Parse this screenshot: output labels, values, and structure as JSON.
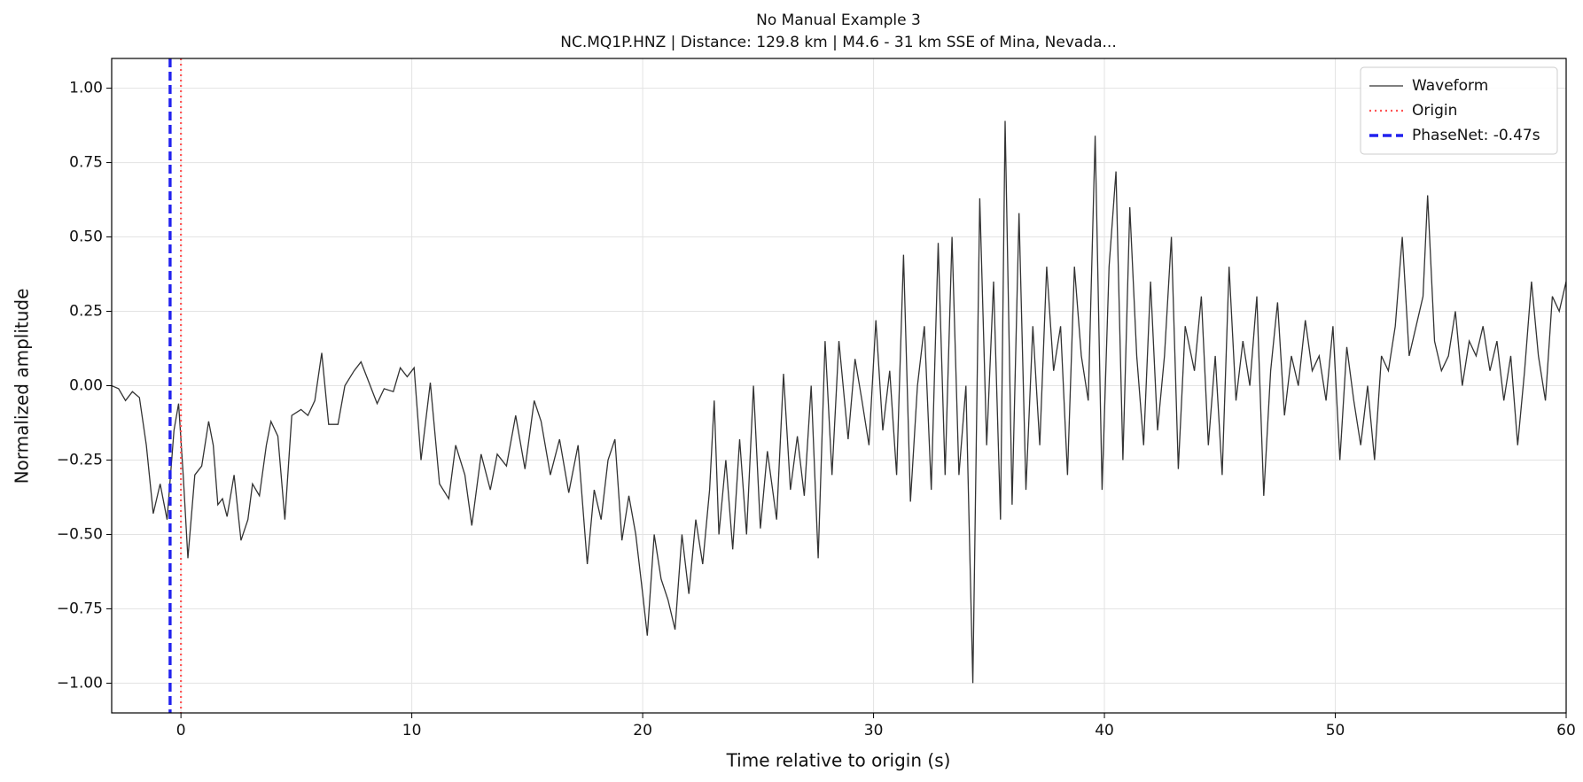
{
  "chart_data": {
    "type": "line",
    "title": "No Manual Example 3",
    "subtitle": "NC.MQ1P.HNZ | Distance: 129.8 km | M4.6 - 31 km SSE of Mina, Nevada...",
    "xlabel": "Time relative to origin (s)",
    "ylabel": "Normalized amplitude",
    "xlim": [
      -3,
      60
    ],
    "ylim": [
      -1.1,
      1.1
    ],
    "xticks": [
      0,
      10,
      20,
      30,
      40,
      50,
      60
    ],
    "yticks": [
      {
        "value": -1,
        "label": "−1.00"
      },
      {
        "value": -0.75,
        "label": "−0.75"
      },
      {
        "value": -0.5,
        "label": "−0.50"
      },
      {
        "value": -0.25,
        "label": "−0.25"
      },
      {
        "value": 0,
        "label": "0.00"
      },
      {
        "value": 0.25,
        "label": "0.25"
      },
      {
        "value": 0.5,
        "label": "0.50"
      },
      {
        "value": 0.75,
        "label": "0.75"
      },
      {
        "value": 1,
        "label": "1.00"
      }
    ],
    "grid": true,
    "legend": "upper right",
    "x": [
      -3,
      -2.7,
      -2.4,
      -2.1,
      -1.8,
      -1.5,
      -1.2,
      -0.9,
      -0.6,
      -0.3,
      -0.1,
      0.1,
      0.3,
      0.6,
      0.9,
      1.2,
      1.4,
      1.6,
      1.8,
      2.0,
      2.3,
      2.6,
      2.9,
      3.1,
      3.4,
      3.7,
      3.9,
      4.2,
      4.5,
      4.8,
      5.2,
      5.5,
      5.8,
      6.1,
      6.4,
      6.8,
      7.1,
      7.5,
      7.8,
      8.2,
      8.5,
      8.8,
      9.2,
      9.5,
      9.8,
      10.1,
      10.4,
      10.8,
      11.2,
      11.6,
      11.9,
      12.3,
      12.6,
      13.0,
      13.4,
      13.7,
      14.1,
      14.5,
      14.9,
      15.3,
      15.6,
      16.0,
      16.4,
      16.8,
      17.2,
      17.6,
      17.9,
      18.2,
      18.5,
      18.8,
      19.1,
      19.4,
      19.7,
      20.0,
      20.2,
      20.5,
      20.8,
      21.1,
      21.4,
      21.7,
      22.0,
      22.3,
      22.6,
      22.9,
      23.1,
      23.3,
      23.6,
      23.9,
      24.2,
      24.5,
      24.8,
      25.1,
      25.4,
      25.8,
      26.1,
      26.4,
      26.7,
      27.0,
      27.3,
      27.6,
      27.9,
      28.2,
      28.5,
      28.9,
      29.2,
      29.5,
      29.8,
      30.1,
      30.4,
      30.7,
      31.0,
      31.3,
      31.6,
      31.9,
      32.2,
      32.5,
      32.8,
      33.1,
      33.4,
      33.7,
      34.0,
      34.3,
      34.6,
      34.9,
      35.2,
      35.5,
      35.7,
      36.0,
      36.3,
      36.6,
      36.9,
      37.2,
      37.5,
      37.8,
      38.1,
      38.4,
      38.7,
      39.0,
      39.3,
      39.6,
      39.9,
      40.2,
      40.5,
      40.8,
      41.1,
      41.4,
      41.7,
      42.0,
      42.3,
      42.6,
      42.9,
      43.2,
      43.5,
      43.9,
      44.2,
      44.5,
      44.8,
      45.1,
      45.4,
      45.7,
      46.0,
      46.3,
      46.6,
      46.9,
      47.2,
      47.5,
      47.8,
      48.1,
      48.4,
      48.7,
      49.0,
      49.3,
      49.6,
      49.9,
      50.2,
      50.5,
      50.8,
      51.1,
      51.4,
      51.7,
      52.0,
      52.3,
      52.6,
      52.9,
      53.2,
      53.5,
      53.8,
      54.0,
      54.3,
      54.6,
      54.9,
      55.2,
      55.5,
      55.8,
      56.1,
      56.4,
      56.7,
      57.0,
      57.3,
      57.6,
      57.9,
      58.2,
      58.5,
      58.8,
      59.1,
      59.4,
      59.7,
      60.0
    ],
    "series": [
      {
        "name": "Waveform",
        "color": "#333333",
        "values": [
          0,
          -0.01,
          -0.05,
          -0.02,
          -0.04,
          -0.2,
          -0.43,
          -0.33,
          -0.45,
          -0.15,
          -0.06,
          -0.3,
          -0.58,
          -0.3,
          -0.27,
          -0.12,
          -0.2,
          -0.4,
          -0.38,
          -0.44,
          -0.3,
          -0.52,
          -0.45,
          -0.33,
          -0.37,
          -0.2,
          -0.12,
          -0.17,
          -0.45,
          -0.1,
          -0.08,
          -0.1,
          -0.05,
          0.11,
          -0.13,
          -0.13,
          0,
          0.05,
          0.08,
          0,
          -0.06,
          -0.01,
          -0.02,
          0.06,
          0.03,
          0.06,
          -0.25,
          0.01,
          -0.33,
          -0.38,
          -0.2,
          -0.3,
          -0.47,
          -0.23,
          -0.35,
          -0.23,
          -0.27,
          -0.1,
          -0.28,
          -0.05,
          -0.12,
          -0.3,
          -0.18,
          -0.36,
          -0.2,
          -0.6,
          -0.35,
          -0.45,
          -0.25,
          -0.18,
          -0.52,
          -0.37,
          -0.5,
          -0.7,
          -0.84,
          -0.5,
          -0.65,
          -0.72,
          -0.82,
          -0.5,
          -0.7,
          -0.45,
          -0.6,
          -0.35,
          -0.05,
          -0.5,
          -0.25,
          -0.55,
          -0.18,
          -0.5,
          0,
          -0.48,
          -0.22,
          -0.45,
          0.04,
          -0.35,
          -0.17,
          -0.37,
          0,
          -0.58,
          0.15,
          -0.3,
          0.15,
          -0.18,
          0.09,
          -0.05,
          -0.2,
          0.22,
          -0.15,
          0.05,
          -0.3,
          0.44,
          -0.39,
          0,
          0.2,
          -0.35,
          0.48,
          -0.3,
          0.5,
          -0.3,
          0,
          -1.0,
          0.63,
          -0.2,
          0.35,
          -0.45,
          0.89,
          -0.4,
          0.58,
          -0.35,
          0.2,
          -0.2,
          0.4,
          0.05,
          0.2,
          -0.3,
          0.4,
          0.1,
          -0.05,
          0.84,
          -0.35,
          0.4,
          0.72,
          -0.25,
          0.6,
          0.1,
          -0.2,
          0.35,
          -0.15,
          0.1,
          0.5,
          -0.28,
          0.2,
          0.05,
          0.3,
          -0.2,
          0.1,
          -0.3,
          0.4,
          -0.05,
          0.15,
          0,
          0.3,
          -0.37,
          0.05,
          0.28,
          -0.1,
          0.1,
          0,
          0.22,
          0.05,
          0.1,
          -0.05,
          0.2,
          -0.25,
          0.13,
          -0.05,
          -0.2,
          0,
          -0.25,
          0.1,
          0.05,
          0.2,
          0.5,
          0.1,
          0.2,
          0.3,
          0.64,
          0.15,
          0.05,
          0.1,
          0.25,
          0,
          0.15,
          0.1,
          0.2,
          0.05,
          0.15,
          -0.05,
          0.1,
          -0.2,
          0.05,
          0.35,
          0.1,
          -0.05,
          0.3,
          0.25,
          0.35
        ]
      }
    ],
    "markers": [
      {
        "name": "Origin",
        "x": 0,
        "color": "#ff5555",
        "style": "dotted"
      },
      {
        "name": "PhaseNet: -0.47s",
        "x": -0.47,
        "color": "#2222ee",
        "style": "dashed"
      }
    ]
  }
}
